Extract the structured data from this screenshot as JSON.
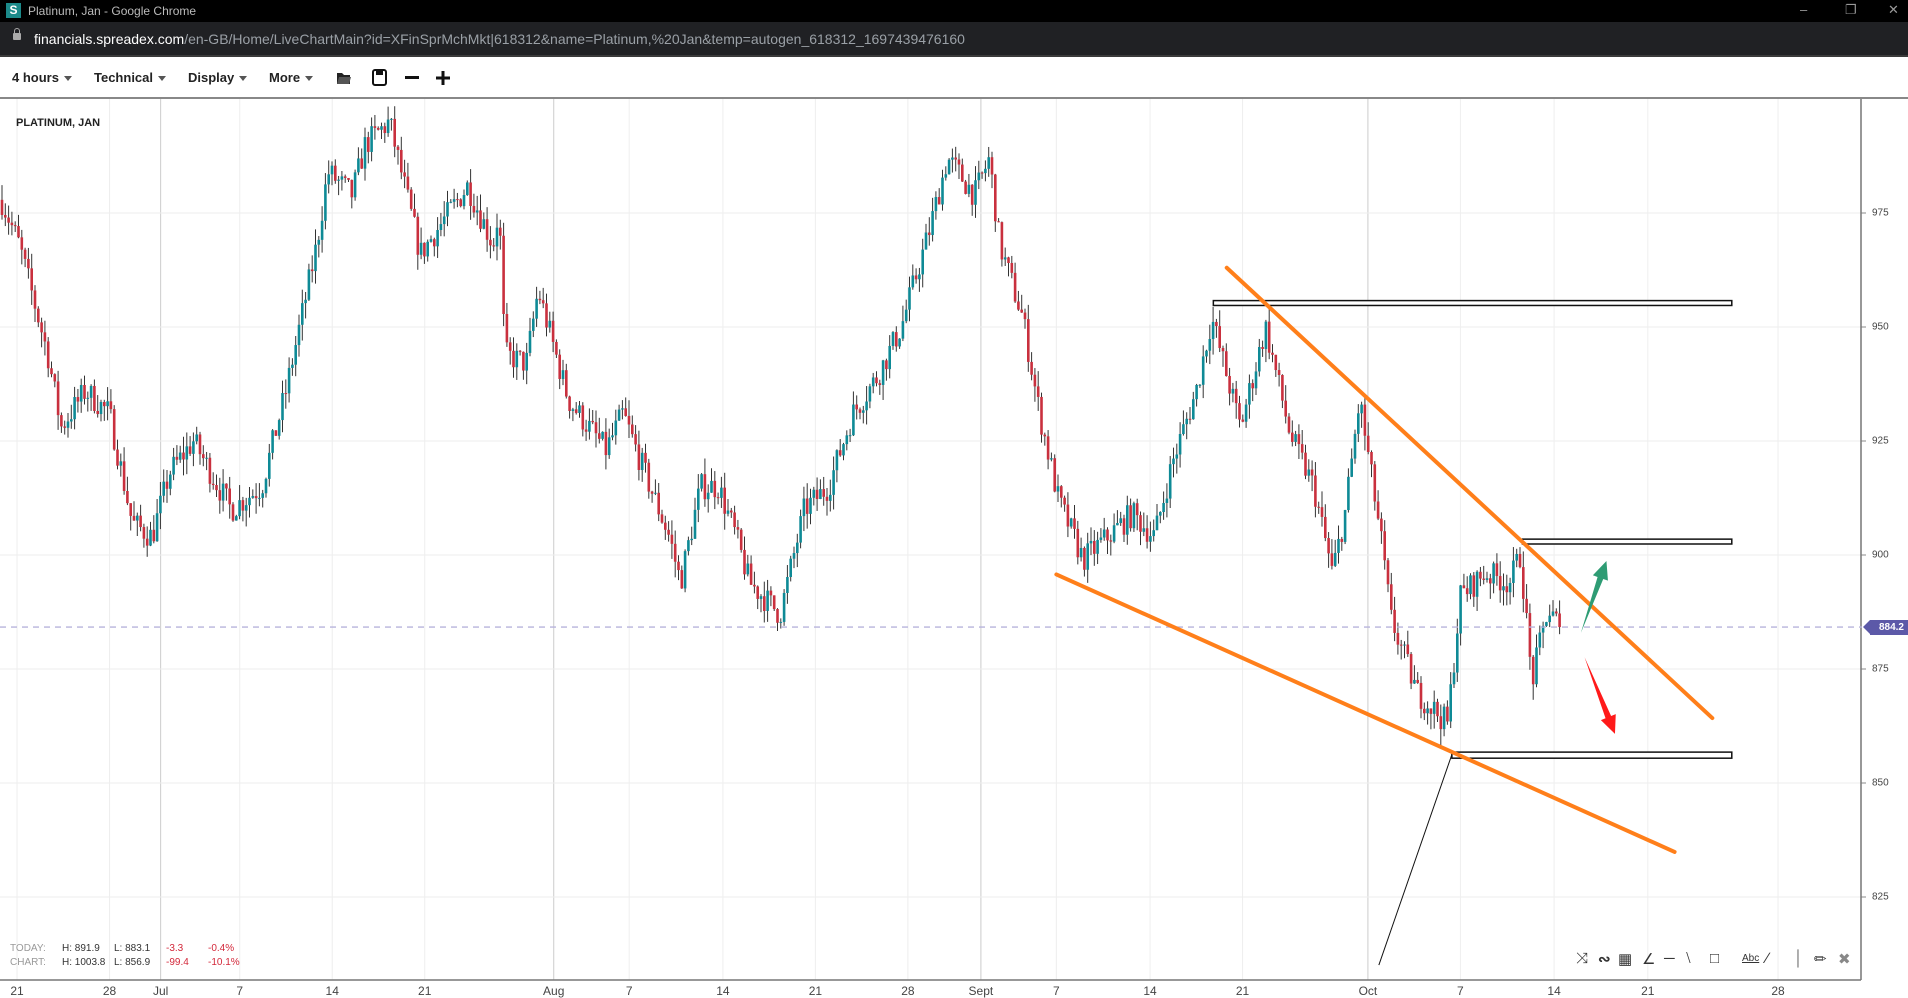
{
  "window": {
    "title": "Platinum, Jan - Google Chrome",
    "logo_letter": "S"
  },
  "address_bar": {
    "domain": "financials.spreadex.com",
    "path": "/en-GB/Home/LiveChartMain?id=XFinSprMchMkt|618312&name=Platinum,%20Jan&temp=autogen_618312_1697439476160"
  },
  "toolbar": {
    "menus": [
      {
        "label": "4 hours"
      },
      {
        "label": "Technical"
      },
      {
        "label": "Display"
      },
      {
        "label": "More"
      }
    ],
    "icons": [
      "open-folder-icon",
      "save-icon",
      "zoom-out-icon",
      "zoom-in-icon"
    ]
  },
  "stats": {
    "today": {
      "label": "TODAY:",
      "high": "H: 891.9",
      "low": "L: 883.1",
      "change": "-3.3",
      "pct": "-0.4%"
    },
    "chart": {
      "label": "CHART:",
      "high": "H: 1003.8",
      "low": "L: 856.9",
      "change": "-99.4",
      "pct": "-10.1%"
    }
  },
  "drawing_tools": [
    "arrow-tool-icon",
    "curve-tool-icon",
    "fibonacci-tool-icon",
    "fan-tool-icon",
    "horizontal-line-icon",
    "trend-line-icon",
    "rectangle-icon",
    "text-tool-icon",
    "line-icon",
    "vertical-line-icon",
    "ruler-icon",
    "delete-icon"
  ],
  "drawing_tools_text": {
    "text_tool": "Abc"
  },
  "colors": {
    "up": "#0e8a96",
    "down": "#c9303e",
    "trendline": "#ff7f1a",
    "bull_arrow": "#2e9c74",
    "bear_arrow": "#ff1a1a",
    "last_price": "#5c59a8"
  },
  "chart_data": {
    "type": "candlestick",
    "title": "PLATINUM, JAN",
    "interval": "4 hours",
    "last_price": "884.2",
    "ylim": [
      812,
      1000
    ],
    "y_ticks": [
      "975",
      "950",
      "925",
      "900",
      "875",
      "850",
      "825"
    ],
    "x_ticks": [
      "21",
      "28",
      "Jul",
      "7",
      "14",
      "21",
      "Aug",
      "7",
      "14",
      "21",
      "28",
      "Sept",
      "7",
      "14",
      "21",
      "Oct",
      "7",
      "14",
      "21",
      "28"
    ],
    "grid": true,
    "price_path": [
      [
        "2023-06-19 16:00",
        979
      ],
      [
        "2023-06-21 04:00",
        968
      ],
      [
        "2023-06-23 08:00",
        944
      ],
      [
        "2023-06-24 08:00",
        928
      ],
      [
        "2023-06-26 04:00",
        936
      ],
      [
        "2023-06-28 00:00",
        931
      ],
      [
        "2023-06-29 08:00",
        907
      ],
      [
        "2023-06-30 12:00",
        904
      ],
      [
        "2023-07-01 16:00",
        918
      ],
      [
        "2023-07-03 12:00",
        925
      ],
      [
        "2023-07-06 08:00",
        910
      ],
      [
        "2023-07-08 16:00",
        915
      ],
      [
        "2023-07-10 12:00",
        936
      ],
      [
        "2023-07-12 20:00",
        968
      ],
      [
        "2023-07-13 16:00",
        984
      ],
      [
        "2023-07-15 12:00",
        979
      ],
      [
        "2023-07-16 12:00",
        990
      ],
      [
        "2023-07-18 08:00",
        995
      ],
      [
        "2023-07-20 16:00",
        966
      ],
      [
        "2023-07-24 16:00",
        981
      ],
      [
        "2023-07-26 20:00",
        968
      ],
      [
        "2023-07-27 08:00",
        976
      ],
      [
        "2023-07-27 20:00",
        944
      ],
      [
        "2023-07-29 16:00",
        942
      ],
      [
        "2023-07-30 16:00",
        958
      ],
      [
        "2023-08-02 04:00",
        934
      ],
      [
        "2023-08-05 04:00",
        923
      ],
      [
        "2023-08-06 12:00",
        931
      ],
      [
        "2023-08-08 04:00",
        918
      ],
      [
        "2023-08-10 00:00",
        904
      ],
      [
        "2023-08-10 20:00",
        894
      ],
      [
        "2023-08-12 08:00",
        915
      ],
      [
        "2023-08-13 16:00",
        915
      ],
      [
        "2023-08-15 00:00",
        904
      ],
      [
        "2023-08-16 00:00",
        894
      ],
      [
        "2023-08-18 08:00",
        887
      ],
      [
        "2023-08-20 04:00",
        910
      ],
      [
        "2023-08-22 00:00",
        915
      ],
      [
        "2023-08-23 20:00",
        931
      ],
      [
        "2023-08-25 16:00",
        939
      ],
      [
        "2023-08-27 12:00",
        950
      ],
      [
        "2023-08-29 04:00",
        971
      ],
      [
        "2023-08-30 04:00",
        987
      ],
      [
        "2023-08-31 16:00",
        979
      ],
      [
        "2023-09-01 16:00",
        987
      ],
      [
        "2023-09-02 12:00",
        968
      ],
      [
        "2023-09-04 08:00",
        952
      ],
      [
        "2023-09-05 16:00",
        931
      ],
      [
        "2023-09-07 04:00",
        912
      ],
      [
        "2023-09-09 00:00",
        899
      ],
      [
        "2023-09-10 20:00",
        904
      ],
      [
        "2023-09-12 16:00",
        909
      ],
      [
        "2023-09-14 08:00",
        904
      ],
      [
        "2023-09-15 16:00",
        920
      ],
      [
        "2023-09-17 12:00",
        936
      ],
      [
        "2023-09-18 16:00",
        952
      ],
      [
        "2023-09-20 20:00",
        928
      ],
      [
        "2023-09-22 20:00",
        950
      ],
      [
        "2023-09-24 20:00",
        926
      ],
      [
        "2023-09-26 16:00",
        915
      ],
      [
        "2023-09-28 04:00",
        896
      ],
      [
        "2023-09-29 04:00",
        909
      ],
      [
        "2023-09-30 08:00",
        934
      ],
      [
        "2023-10-01 20:00",
        904
      ],
      [
        "2023-10-02 12:00",
        886
      ],
      [
        "2023-10-04 04:00",
        870
      ],
      [
        "2023-10-06 04:00",
        863
      ],
      [
        "2023-10-07 00:00",
        891
      ],
      [
        "2023-10-08 20:00",
        896
      ],
      [
        "2023-10-10 16:00",
        894
      ],
      [
        "2023-10-11 12:00",
        900
      ],
      [
        "2023-10-12 08:00",
        872
      ],
      [
        "2023-10-13 12:00",
        888
      ],
      [
        "2023-10-14 12:00",
        884.2
      ]
    ],
    "annotations": {
      "horizontal_zones": [
        "955",
        "903",
        "856"
      ],
      "trendlines": [
        "descending resistance",
        "descending support"
      ],
      "arrows": [
        "bullish",
        "bearish"
      ]
    }
  }
}
